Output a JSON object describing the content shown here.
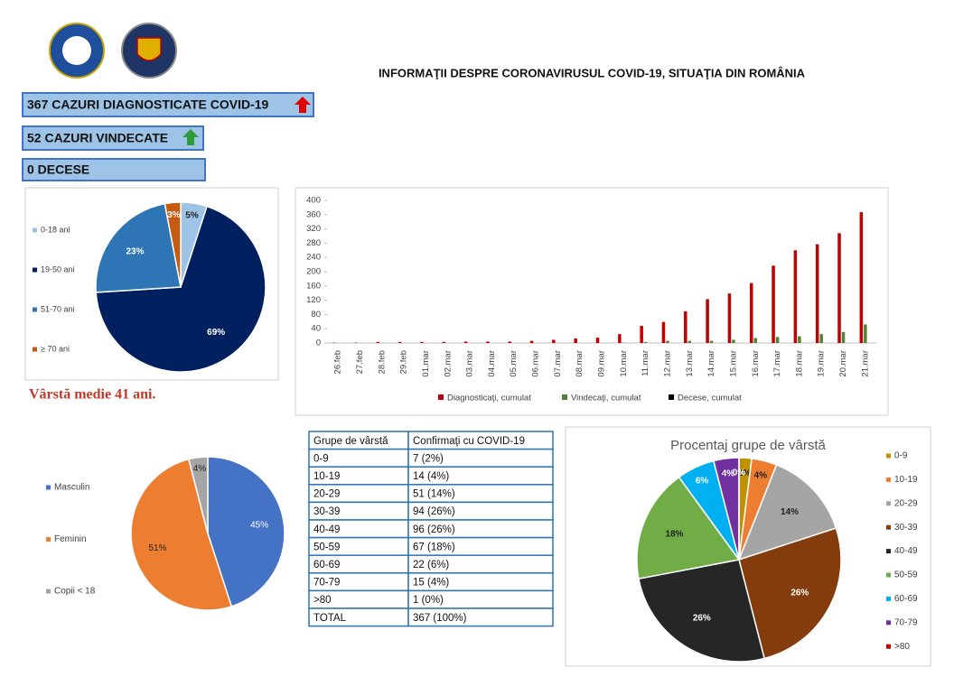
{
  "header": {
    "title": "INFORMAŢII DESPRE CORONAVIRUSUL COVID-19, SITUAŢIA DIN ROMÂNIA"
  },
  "stats": [
    "367 CAZURI DIAGNOSTICATE COVID-19",
    "52 CAZURI VINDECATE",
    "0 DECESE"
  ],
  "note": "Vârstă medie 41 ani.",
  "table": {
    "header": [
      "Grupe de vârstă",
      "Confirmaţi cu COVID-19"
    ],
    "rows": [
      [
        "0-9",
        "7 (2%)"
      ],
      [
        "10-19",
        "14 (4%)"
      ],
      [
        "20-29",
        "51 (14%)"
      ],
      [
        "30-39",
        "94 (26%)"
      ],
      [
        "40-49",
        "96 (26%)"
      ],
      [
        "50-59",
        "67 (18%)"
      ],
      [
        "60-69",
        "22 (6%)"
      ],
      [
        "70-79",
        "15 (4%)"
      ],
      [
        ">80",
        "1 (0%)"
      ],
      [
        "TOTAL",
        "367 (100%)"
      ]
    ]
  },
  "chart_data": [
    {
      "type": "pie",
      "categories": [
        "0-18 ani",
        "19-50 ani",
        "51-70 ani",
        "≥ 70 ani"
      ],
      "values": [
        5,
        69,
        23,
        3
      ],
      "value_labels": [
        "5%",
        "69%",
        "23%",
        "3%"
      ],
      "colors": [
        "#9dc3e6",
        "#002060",
        "#2e75b6",
        "#c55a11"
      ]
    },
    {
      "type": "bar",
      "categories": [
        "26.feb",
        "27.feb",
        "28.feb",
        "29.feb",
        "01.mar",
        "02.mar",
        "03.mar",
        "04.mar",
        "05.mar",
        "06.mar",
        "07.mar",
        "08.mar",
        "09.mar",
        "10.mar",
        "11.mar",
        "12.mar",
        "13.mar",
        "14.mar",
        "15.mar",
        "16.mar",
        "17.mar",
        "18.mar",
        "19.mar",
        "20.mar",
        "21.mar"
      ],
      "series": [
        {
          "name": "Diagnosticaţi, cumulat",
          "color": "#c00000",
          "values": [
            1,
            1,
            3,
            3,
            3,
            3,
            4,
            4,
            4,
            6,
            9,
            13,
            15,
            25,
            48,
            59,
            89,
            123,
            139,
            168,
            217,
            260,
            277,
            308,
            367
          ]
        },
        {
          "name": "Vindecaţi, cumulat",
          "color": "#548235",
          "values": [
            0,
            0,
            0,
            0,
            0,
            0,
            0,
            0,
            0,
            0,
            0,
            0,
            0,
            1,
            3,
            6,
            6,
            6,
            9,
            14,
            17,
            19,
            25,
            31,
            52
          ]
        },
        {
          "name": "Decese, cumulat",
          "color": "#000000",
          "values": [
            0,
            0,
            0,
            0,
            0,
            0,
            0,
            0,
            0,
            0,
            0,
            0,
            0,
            0,
            0,
            0,
            0,
            0,
            0,
            0,
            0,
            0,
            0,
            0,
            0
          ]
        }
      ],
      "ylim": [
        0,
        400
      ],
      "yticks": [
        0,
        40,
        80,
        120,
        160,
        200,
        240,
        280,
        320,
        360,
        400
      ],
      "grid": false
    },
    {
      "type": "pie",
      "categories": [
        "Masculin",
        "Feminin",
        "Copii < 18"
      ],
      "values": [
        45,
        51,
        4
      ],
      "value_labels": [
        "45%",
        "51%",
        "4%"
      ],
      "colors": [
        "#4472c4",
        "#ed7d31",
        "#a5a5a5"
      ]
    },
    {
      "type": "pie",
      "title": "Procentaj grupe de vârstă",
      "categories": [
        "0-9",
        "10-19",
        "20-29",
        "30-39",
        "40-49",
        "50-59",
        "60-69",
        "70-79",
        ">80"
      ],
      "values": [
        2,
        4,
        14,
        26,
        26,
        18,
        6,
        4,
        0
      ],
      "value_labels": [
        "2%",
        "4%",
        "14%",
        "26%",
        "26%",
        "18%",
        "6%",
        "4%",
        "0%"
      ],
      "colors": [
        "#bf9000",
        "#ed7d31",
        "#a5a5a5",
        "#843c0c",
        "#262626",
        "#70ad47",
        "#00b0f0",
        "#7030a0",
        "#c00000"
      ]
    }
  ]
}
